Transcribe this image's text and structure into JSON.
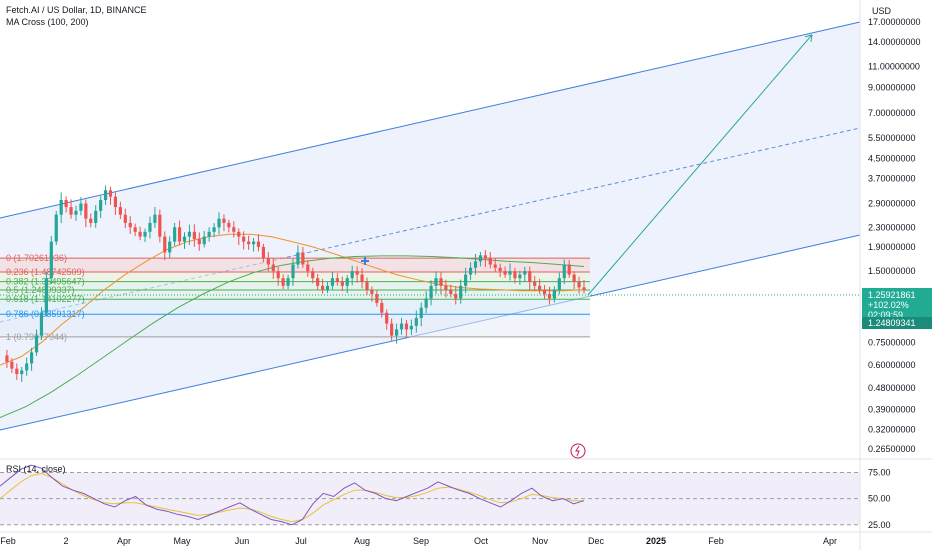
{
  "header": {
    "symbol": "Fetch.AI / US Dollar, 1D, BINANCE",
    "indicator": "MA Cross (100, 200)",
    "currency": "USD"
  },
  "rsi_label": "RSI (14, close)",
  "colors": {
    "up": "#26a69a",
    "down": "#ef5350",
    "channel": "#3d7de0",
    "ma100": "#f0922b",
    "ma200": "#4caf50",
    "rsi": "#7e57c2",
    "rsi_ma": "#e6c23a",
    "fib_red": "#e0605a",
    "fib_green": "#4caf50",
    "fib_blue": "#2196f3",
    "arrow": "#26a69a",
    "price_tag": "#22ab94",
    "projection": "#5a8ee0"
  },
  "price_tag": {
    "last": "1.25921861",
    "change": "+102.02%",
    "countdown": "02:09:59",
    "level": "1.24809341"
  },
  "chart_data": [
    {
      "type": "candlestick",
      "title": "Fetch.AI / US Dollar, 1D, BINANCE",
      "x_axis": {
        "ticks": [
          "Feb",
          "2",
          "Apr",
          "May",
          "Jun",
          "Jul",
          "Aug",
          "Sep",
          "Oct",
          "Nov",
          "Dec",
          "2025",
          "Feb",
          "Apr"
        ]
      },
      "y_axis": {
        "scale": "log",
        "unit": "USD",
        "ylim": [
          0.25,
          17.0
        ],
        "ticks": [
          {
            "v": 17.0,
            "label": "17.00000000"
          },
          {
            "v": 14.0,
            "label": "14.00000000"
          },
          {
            "v": 11.0,
            "label": "11.00000000"
          },
          {
            "v": 9.0,
            "label": "9.00000000"
          },
          {
            "v": 7.0,
            "label": "7.00000000"
          },
          {
            "v": 5.5,
            "label": "5.50000000"
          },
          {
            "v": 4.5,
            "label": "4.50000000"
          },
          {
            "v": 3.7,
            "label": "3.70000000"
          },
          {
            "v": 2.9,
            "label": "2.90000000"
          },
          {
            "v": 2.3,
            "label": "2.30000000"
          },
          {
            "v": 1.9,
            "label": "1.90000000"
          },
          {
            "v": 1.5,
            "label": "1.50000000"
          },
          {
            "v": 0.75,
            "label": "0.75000000"
          },
          {
            "v": 0.6,
            "label": "0.60000000"
          },
          {
            "v": 0.48,
            "label": "0.48000000"
          },
          {
            "v": 0.39,
            "label": "0.39000000"
          },
          {
            "v": 0.32,
            "label": "0.32000000"
          },
          {
            "v": 0.265,
            "label": "0.26500000"
          }
        ]
      },
      "price_path": [
        0.66,
        0.62,
        0.58,
        0.55,
        0.57,
        0.61,
        0.68,
        0.8,
        1.0,
        1.4,
        2.0,
        2.6,
        3.0,
        2.8,
        2.6,
        2.7,
        2.9,
        2.5,
        2.4,
        2.7,
        3.0,
        3.3,
        3.1,
        2.8,
        2.6,
        2.4,
        2.3,
        2.2,
        2.1,
        2.2,
        2.4,
        2.6,
        2.1,
        1.8,
        2.0,
        2.3,
        2.0,
        2.1,
        2.2,
        2.05,
        1.95,
        2.1,
        2.2,
        2.3,
        2.5,
        2.4,
        2.3,
        2.2,
        2.1,
        2.0,
        1.95,
        2.0,
        1.9,
        1.7,
        1.6,
        1.5,
        1.4,
        1.3,
        1.4,
        1.6,
        1.8,
        1.6,
        1.5,
        1.4,
        1.3,
        1.25,
        1.3,
        1.4,
        1.35,
        1.3,
        1.4,
        1.5,
        1.45,
        1.35,
        1.25,
        1.2,
        1.1,
        1.0,
        0.9,
        0.8,
        0.85,
        0.9,
        0.85,
        0.88,
        0.95,
        1.05,
        1.15,
        1.3,
        1.4,
        1.3,
        1.25,
        1.2,
        1.15,
        1.3,
        1.45,
        1.55,
        1.65,
        1.75,
        1.7,
        1.6,
        1.55,
        1.5,
        1.45,
        1.5,
        1.4,
        1.45,
        1.5,
        1.35,
        1.3,
        1.25,
        1.2,
        1.15,
        1.25,
        1.4,
        1.6,
        1.45,
        1.35,
        1.28,
        1.25
      ],
      "overlays": {
        "ma100_path": [
          0.6,
          0.65,
          0.75,
          0.9,
          1.05,
          1.25,
          1.45,
          1.65,
          1.85,
          2.0,
          2.1,
          2.15,
          2.15,
          2.1,
          2.0,
          1.9,
          1.78,
          1.66,
          1.55,
          1.45,
          1.38,
          1.32,
          1.28,
          1.26,
          1.25,
          1.24,
          1.24,
          1.24,
          1.25
        ],
        "ma200_path": [
          0.36,
          0.4,
          0.46,
          0.54,
          0.64,
          0.76,
          0.9,
          1.05,
          1.2,
          1.35,
          1.48,
          1.58,
          1.65,
          1.7,
          1.73,
          1.74,
          1.74,
          1.73,
          1.71,
          1.68,
          1.65,
          1.63,
          1.6,
          1.57
        ],
        "fib_levels": [
          {
            "ratio": "0",
            "price": "1.70261936"
          },
          {
            "ratio": "0.236",
            "price": "1.48742509"
          },
          {
            "ratio": "0.382",
            "price": "1.35495647"
          },
          {
            "ratio": "0.5",
            "price": "1.24809337"
          },
          {
            "ratio": "0.618",
            "price": "1.14102277"
          },
          {
            "ratio": "0.786",
            "price": "0.98591317"
          },
          {
            "ratio": "1",
            "price": "0.79077944"
          }
        ],
        "projection_target": 15.0
      }
    },
    {
      "type": "line",
      "title": "RSI (14, close)",
      "y_axis": {
        "ylim": [
          20,
          85
        ],
        "ticks": [
          75,
          50,
          25
        ]
      },
      "rsi_path": [
        62,
        70,
        78,
        82,
        79,
        70,
        62,
        58,
        55,
        50,
        45,
        42,
        48,
        52,
        44,
        40,
        38,
        35,
        33,
        30,
        34,
        38,
        42,
        46,
        40,
        35,
        30,
        28,
        25,
        30,
        45,
        55,
        52,
        60,
        65,
        58,
        55,
        50,
        48,
        52,
        56,
        60,
        66,
        62,
        58,
        55,
        50,
        46,
        42,
        48,
        55,
        60,
        52,
        48,
        50,
        45,
        48
      ],
      "rsi_ma_path": [
        50,
        58,
        66,
        72,
        74,
        70,
        64,
        58,
        53,
        49,
        46,
        45,
        46,
        46,
        44,
        42,
        40,
        38,
        36,
        34,
        35,
        37,
        39,
        41,
        40,
        37,
        33,
        30,
        28,
        30,
        36,
        44,
        49,
        54,
        58,
        58,
        56,
        53,
        51,
        51,
        53,
        56,
        60,
        61,
        59,
        56,
        53,
        49,
        46,
        47,
        50,
        54,
        53,
        51,
        50,
        48,
        48
      ]
    }
  ]
}
